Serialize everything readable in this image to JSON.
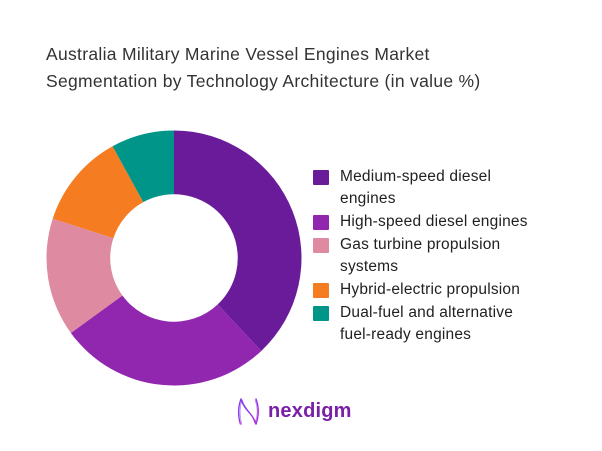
{
  "title_display": "Australia Military Marine Vessel Engines Market\nSegmentation by Technology Architecture (in value %)",
  "chart_data": {
    "type": "pie",
    "subtype": "donut",
    "title": "Australia Military Marine Vessel Engines Market Segmentation by Technology Architecture (in value %)",
    "labels": [
      "Medium-speed diesel engines",
      "High-speed diesel engines",
      "Gas turbine propulsion systems",
      "Hybrid-electric propulsion",
      "Dual-fuel and alternative fuel-ready engines"
    ],
    "values": [
      38,
      27,
      15,
      12,
      8
    ],
    "unit": "%",
    "colors": [
      "#6A1B9A",
      "#9127AF",
      "#DE8AA1",
      "#F57C21",
      "#009589"
    ],
    "start_angle_deg": 0,
    "direction": "clockwise",
    "inner_radius_ratio": 0.5,
    "legend_position": "right",
    "data_labels_shown": false
  },
  "legend": {
    "items": [
      {
        "label": "Medium-speed diesel\nengines",
        "color": "#6A1B9A"
      },
      {
        "label": "High-speed diesel engines",
        "color": "#9127AF"
      },
      {
        "label": "Gas turbine propulsion\nsystems",
        "color": "#DE8AA1"
      },
      {
        "label": "Hybrid-electric propulsion",
        "color": "#F57C21"
      },
      {
        "label": "Dual-fuel and alternative\nfuel-ready engines",
        "color": "#009589"
      }
    ]
  },
  "logo": {
    "text": "nexdigm",
    "color": "#7A1FA8"
  }
}
